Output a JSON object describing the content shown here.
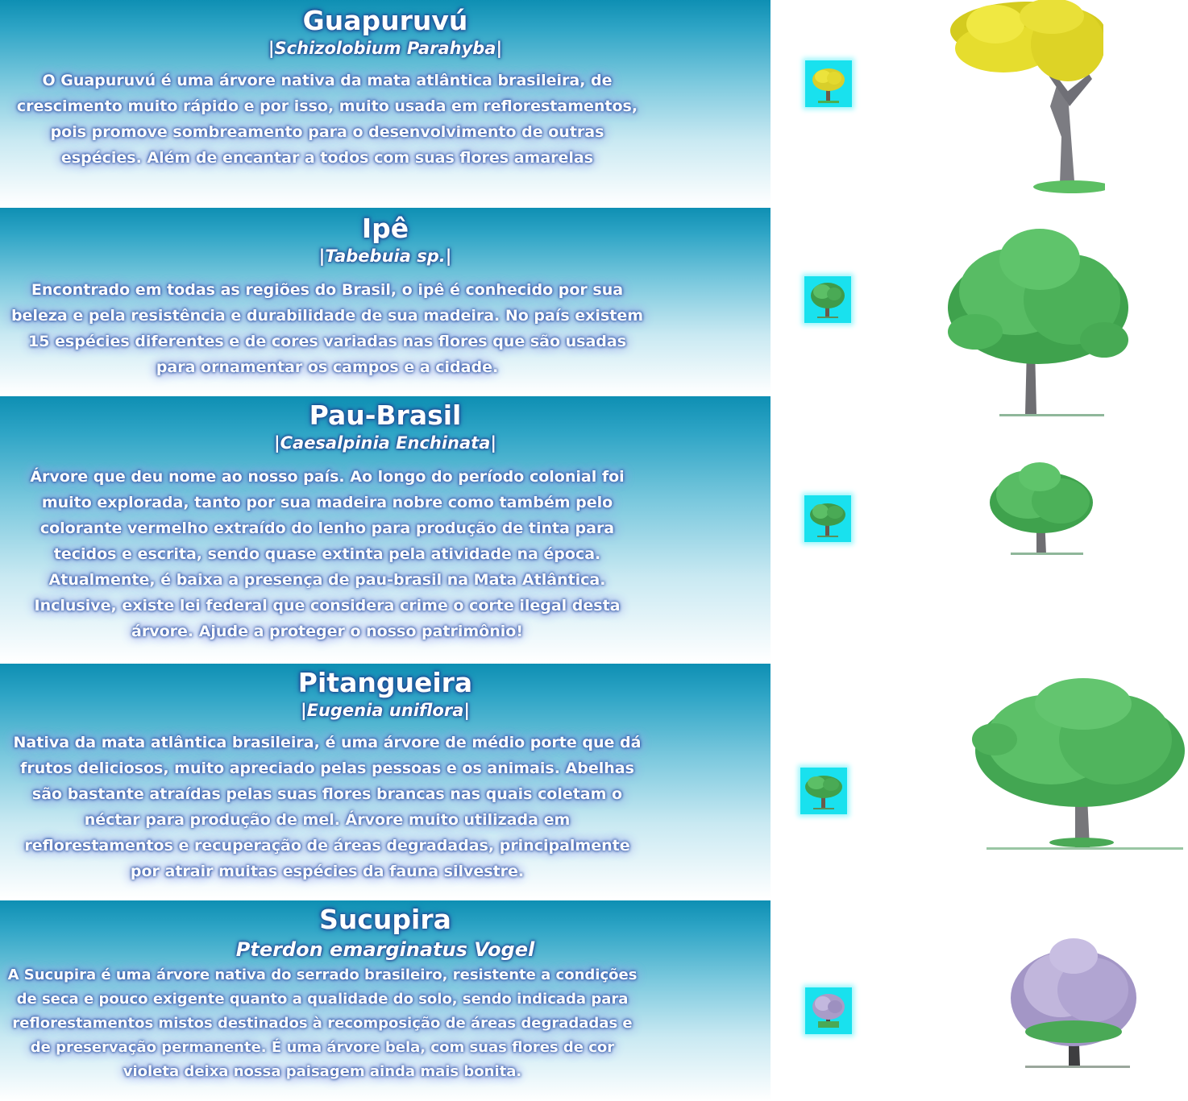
{
  "trees": [
    {
      "name": "Guapuruvú",
      "scientific": "|Schizolobium Parahyba|",
      "description": "O Guapuruvú é uma árvore nativa da mata atlântica brasileira, de crescimento muito rápido e por isso, muito usada em reflorestamentos, pois promove sombreamento para o desenvolvimento de outras espécies. Além de encantar a todos com suas flores amarelas",
      "foliage_color": "#e6e02a",
      "thumbnail_icon": "yellow-tree-icon"
    },
    {
      "name": "Ipê",
      "scientific": "|Tabebuia sp.|",
      "description": "Encontrado em todas as regiões do Brasil, o ipê é conhecido por sua beleza e pela resistência e durabilidade de sua madeira. No país existem 15 espécies diferentes e de cores variadas nas flores que são usadas para ornamentar os campos e a cidade.",
      "foliage_color": "#4fb85a",
      "thumbnail_icon": "green-tree-icon"
    },
    {
      "name": "Pau-Brasil",
      "scientific": "|Caesalpinia Enchinata|",
      "description": "Árvore que deu nome ao nosso país. Ao longo do período colonial foi muito explorada, tanto por sua madeira nobre como também pelo colorante vermelho extraído do lenho para produção de tinta para tecidos e escrita, sendo quase extinta pela atividade na época. Atualmente, é baixa a presença de pau-brasil na Mata Atlântica. Inclusive, existe lei federal que considera crime o corte ilegal desta árvore. Ajude a proteger o nosso patrimônio!",
      "foliage_color": "#4fae58",
      "thumbnail_icon": "green-tree-icon"
    },
    {
      "name": "Pitangueira",
      "scientific": "|Eugenia uniflora|",
      "description": "Nativa da mata atlântica brasileira, é uma árvore de médio porte que dá frutos deliciosos, muito apreciado pelas pessoas e os animais. Abelhas são bastante atraídas pelas suas flores brancas nas quais coletam o néctar para produção de mel. Árvore muito utilizada em reflorestamentos e recuperação de áreas degradadas, principalmente por atrair muitas espécies da fauna silvestre.",
      "foliage_color": "#55b866",
      "thumbnail_icon": "green-tree-icon"
    },
    {
      "name": "Sucupira",
      "scientific": "Pterdon emarginatus Vogel",
      "description": "A Sucupira é uma árvore nativa do serrado brasileiro, resistente a condições de seca e pouco exigente quanto a qualidade do solo, sendo indicada para reflorestamentos mistos destinados à recomposição de áreas degradadas e de preservação permanente. É uma árvore bela, com suas flores de cor violeta deixa nossa paisagem ainda mais bonita.",
      "foliage_color": "#b4a9d2",
      "thumbnail_icon": "violet-tree-icon"
    }
  ]
}
